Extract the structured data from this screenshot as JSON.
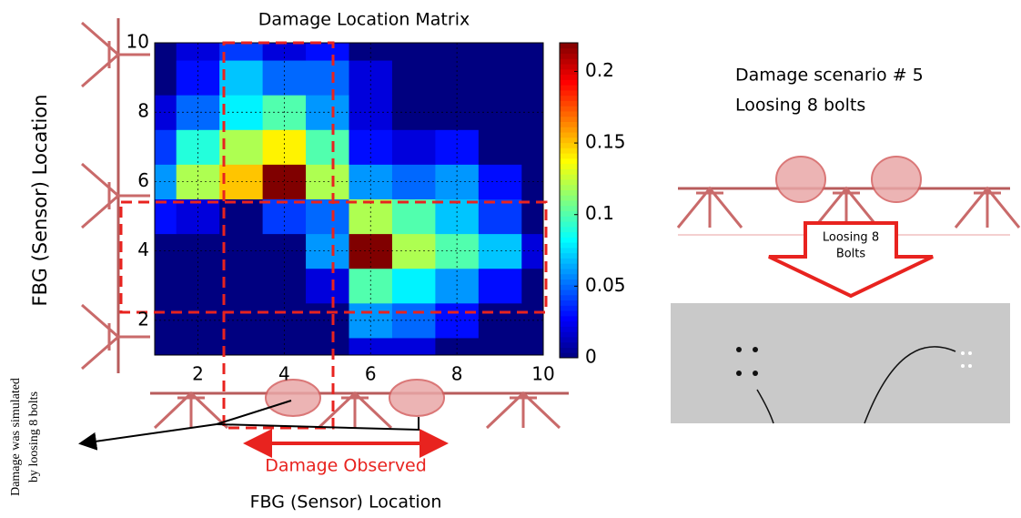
{
  "chart_data": {
    "type": "heatmap",
    "title": "Damage Location Matrix",
    "x_label": "FBG (Sensor) Location",
    "y_label": "FBG (Sensor) Location",
    "x": [
      1,
      2,
      3,
      4,
      5,
      6,
      7,
      8,
      9,
      10
    ],
    "y": [
      1,
      2,
      3,
      4,
      5,
      6,
      7,
      8,
      9,
      10
    ],
    "z": [
      [
        0,
        0,
        0,
        0,
        0,
        0.02,
        0.02,
        0,
        0,
        0
      ],
      [
        0,
        0,
        0,
        0,
        0,
        0.06,
        0.05,
        0.03,
        0,
        0
      ],
      [
        0,
        0,
        0,
        0,
        0.02,
        0.1,
        0.08,
        0.06,
        0.03,
        0
      ],
      [
        0,
        0,
        0,
        0,
        0.06,
        0.22,
        0.12,
        0.1,
        0.07,
        0.02
      ],
      [
        0.03,
        0.02,
        0,
        0.04,
        0.05,
        0.12,
        0.1,
        0.07,
        0.04,
        0
      ],
      [
        0.06,
        0.12,
        0.15,
        0.22,
        0.12,
        0.06,
        0.05,
        0.06,
        0.03,
        0
      ],
      [
        0.04,
        0.09,
        0.12,
        0.14,
        0.1,
        0.03,
        0.02,
        0.03,
        0,
        0
      ],
      [
        0.02,
        0.05,
        0.08,
        0.1,
        0.06,
        0.02,
        0,
        0,
        0,
        0
      ],
      [
        0,
        0.03,
        0.07,
        0.05,
        0.05,
        0.02,
        0,
        0,
        0,
        0
      ],
      [
        0,
        0.02,
        0.04,
        0.02,
        0.03,
        0,
        0,
        0,
        0,
        0
      ]
    ],
    "xlim": [
      1,
      10
    ],
    "xticks": [
      2,
      4,
      6,
      8,
      10
    ],
    "ylim": [
      1,
      10
    ],
    "yticks": [
      2,
      4,
      6,
      8,
      10
    ],
    "zlim": [
      0,
      0.22
    ],
    "zticks": [
      0,
      0.05,
      0.1,
      0.15,
      0.2
    ],
    "colormap": "jet",
    "annotations": [
      "Damage Observed",
      "Damage was simulated",
      "by loosing 8 bolts",
      "Damage scenario # 5",
      "Loosing 8 bolts",
      "Loosing 8",
      "Bolts"
    ]
  }
}
